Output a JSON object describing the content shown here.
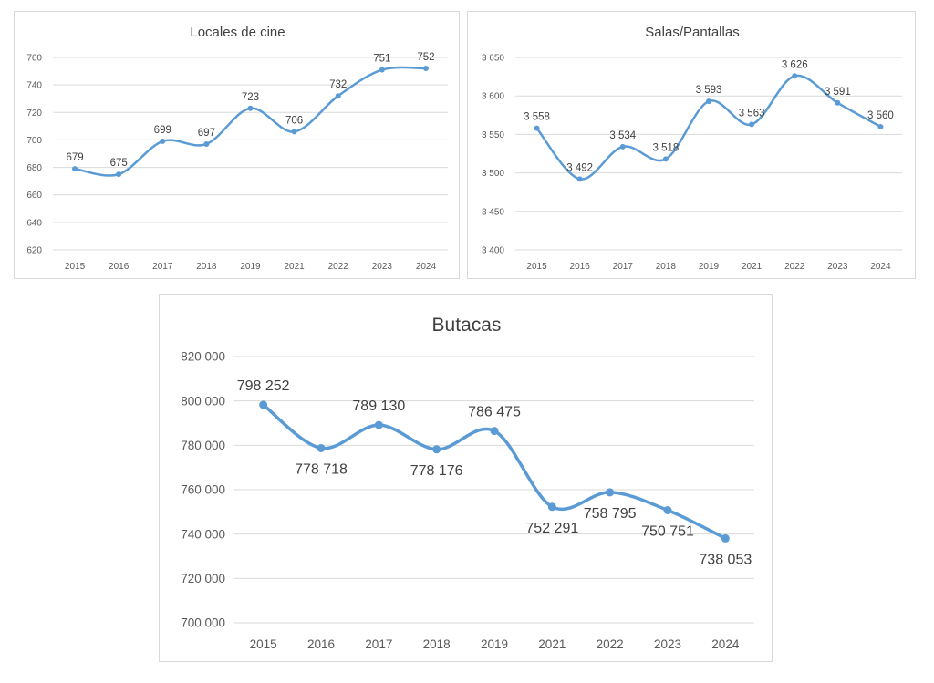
{
  "chart_data": [
    {
      "type": "line",
      "title": "Locales de cine",
      "categories": [
        "2015",
        "2016",
        "2017",
        "2018",
        "2019",
        "2021",
        "2022",
        "2023",
        "2024"
      ],
      "values": [
        679,
        675,
        699,
        697,
        723,
        706,
        732,
        751,
        752
      ],
      "value_labels": [
        "679",
        "675",
        "699",
        "697",
        "723",
        "706",
        "732",
        "751",
        "752"
      ],
      "label_positions": [
        "above",
        "above",
        "above",
        "above",
        "above",
        "above",
        "above",
        "above",
        "above"
      ],
      "ylim": [
        620,
        760
      ],
      "yticks": [
        620,
        640,
        660,
        680,
        700,
        720,
        740,
        760
      ],
      "ytick_labels": [
        "620",
        "640",
        "660",
        "680",
        "700",
        "720",
        "740",
        "760"
      ],
      "smooth": true,
      "grid": true,
      "color": "#5b9bd5"
    },
    {
      "type": "line",
      "title": "Salas/Pantallas",
      "categories": [
        "2015",
        "2016",
        "2017",
        "2018",
        "2019",
        "2021",
        "2022",
        "2023",
        "2024"
      ],
      "values": [
        3558,
        3492,
        3534,
        3518,
        3593,
        3563,
        3626,
        3591,
        3560
      ],
      "value_labels": [
        "3 558",
        "3 492",
        "3 534",
        "3 518",
        "3 593",
        "3 563",
        "3 626",
        "3 591",
        "3 560"
      ],
      "label_positions": [
        "above",
        "above",
        "above",
        "above",
        "above",
        "above",
        "above",
        "above",
        "above"
      ],
      "ylim": [
        3400,
        3650
      ],
      "yticks": [
        3400,
        3450,
        3500,
        3550,
        3600,
        3650
      ],
      "ytick_labels": [
        "3 400",
        "3 450",
        "3 500",
        "3 550",
        "3 600",
        "3 650"
      ],
      "smooth": true,
      "grid": true,
      "color": "#5b9bd5"
    },
    {
      "type": "line",
      "title": "Butacas",
      "categories": [
        "2015",
        "2016",
        "2017",
        "2018",
        "2019",
        "2021",
        "2022",
        "2023",
        "2024"
      ],
      "values": [
        798252,
        778718,
        789130,
        778176,
        786475,
        752291,
        758795,
        750751,
        738053
      ],
      "value_labels": [
        "798 252",
        "778 718",
        "789 130",
        "778 176",
        "786 475",
        "752 291",
        "758 795",
        "750 751",
        "738 053"
      ],
      "label_positions": [
        "above",
        "below",
        "above",
        "below",
        "above",
        "below",
        "below",
        "below",
        "below"
      ],
      "ylim": [
        700000,
        820000
      ],
      "yticks": [
        700000,
        720000,
        740000,
        760000,
        780000,
        800000,
        820000
      ],
      "ytick_labels": [
        "700 000",
        "720 000",
        "740 000",
        "760 000",
        "780 000",
        "800 000",
        "820 000"
      ],
      "smooth": true,
      "grid": true,
      "color": "#5b9bd5"
    }
  ]
}
